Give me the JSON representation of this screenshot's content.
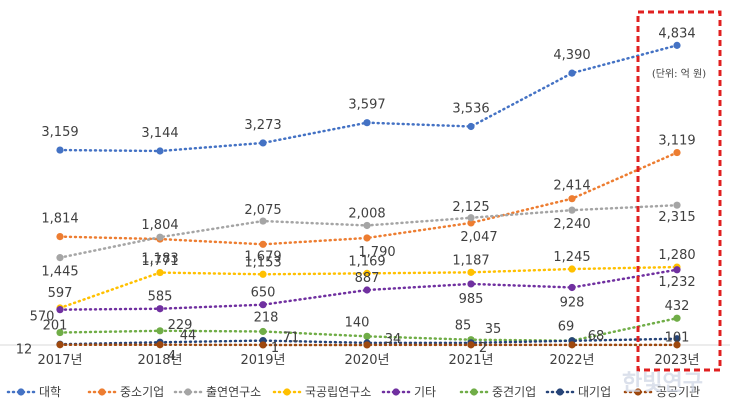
{
  "chart_data": {
    "type": "line",
    "unit_note": "(단위: 억 원)",
    "categories": [
      "2017년",
      "2018년",
      "2019년",
      "2020년",
      "2021년",
      "2022년",
      "2023년"
    ],
    "ylim": [
      0,
      5000
    ],
    "grid": false,
    "legend_position": "bottom",
    "series": [
      {
        "name": "대학",
        "color": "#4472c4",
        "values": [
          3159,
          3144,
          3273,
          3597,
          3536,
          4390,
          4834
        ],
        "labels": [
          "3,159",
          "3,144",
          "3,273",
          "3,597",
          "3,536",
          "4,390",
          "4,834"
        ]
      },
      {
        "name": "중소기업",
        "color": "#ed7d31",
        "values": [
          1814,
          1771,
          1679,
          1790,
          2047,
          2414,
          3119
        ],
        "labels": [
          "1,814",
          "1,771",
          "1,679",
          "1,790",
          "2,047",
          "2,414",
          "3,119"
        ]
      },
      {
        "name": "출연연구소",
        "color": "#a5a5a5",
        "values": [
          1445,
          1804,
          2075,
          2008,
          2125,
          2240,
          2315
        ],
        "labels": [
          "1,445",
          "1,804",
          "2,075",
          "2,008",
          "2,125",
          "2,240",
          "2,315"
        ]
      },
      {
        "name": "국공립연구소",
        "color": "#ffc000",
        "values": [
          597,
          1183,
          1153,
          1169,
          1187,
          1245,
          1280
        ],
        "labels": [
          "597",
          "1,183",
          "1,153",
          "1,169",
          "1,187",
          "1,245",
          "1,280"
        ]
      },
      {
        "name": "기타",
        "color": "#7030a0",
        "values": [
          570,
          585,
          650,
          887,
          985,
          928,
          1232
        ],
        "labels": [
          "570",
          "585",
          "650",
          "887",
          "985",
          "928",
          "1,232"
        ]
      },
      {
        "name": "중견기업",
        "color": "#70ad47",
        "values": [
          201,
          229,
          218,
          140,
          85,
          69,
          432
        ],
        "labels": [
          "201",
          "229",
          "218",
          "140",
          "85",
          "69",
          "432"
        ]
      },
      {
        "name": "대기업",
        "color": "#264478",
        "values": [
          12,
          44,
          71,
          34,
          35,
          68,
          101
        ],
        "labels": [
          "12",
          "44",
          "71",
          "34",
          "35",
          "68",
          "101"
        ]
      },
      {
        "name": "공공기관",
        "color": "#9e480e",
        "values": [
          4,
          4,
          1,
          1,
          2,
          2,
          2
        ],
        "labels": [
          "",
          "4",
          "1",
          "",
          "2",
          "",
          ""
        ]
      }
    ]
  },
  "watermark": "한빛연구"
}
